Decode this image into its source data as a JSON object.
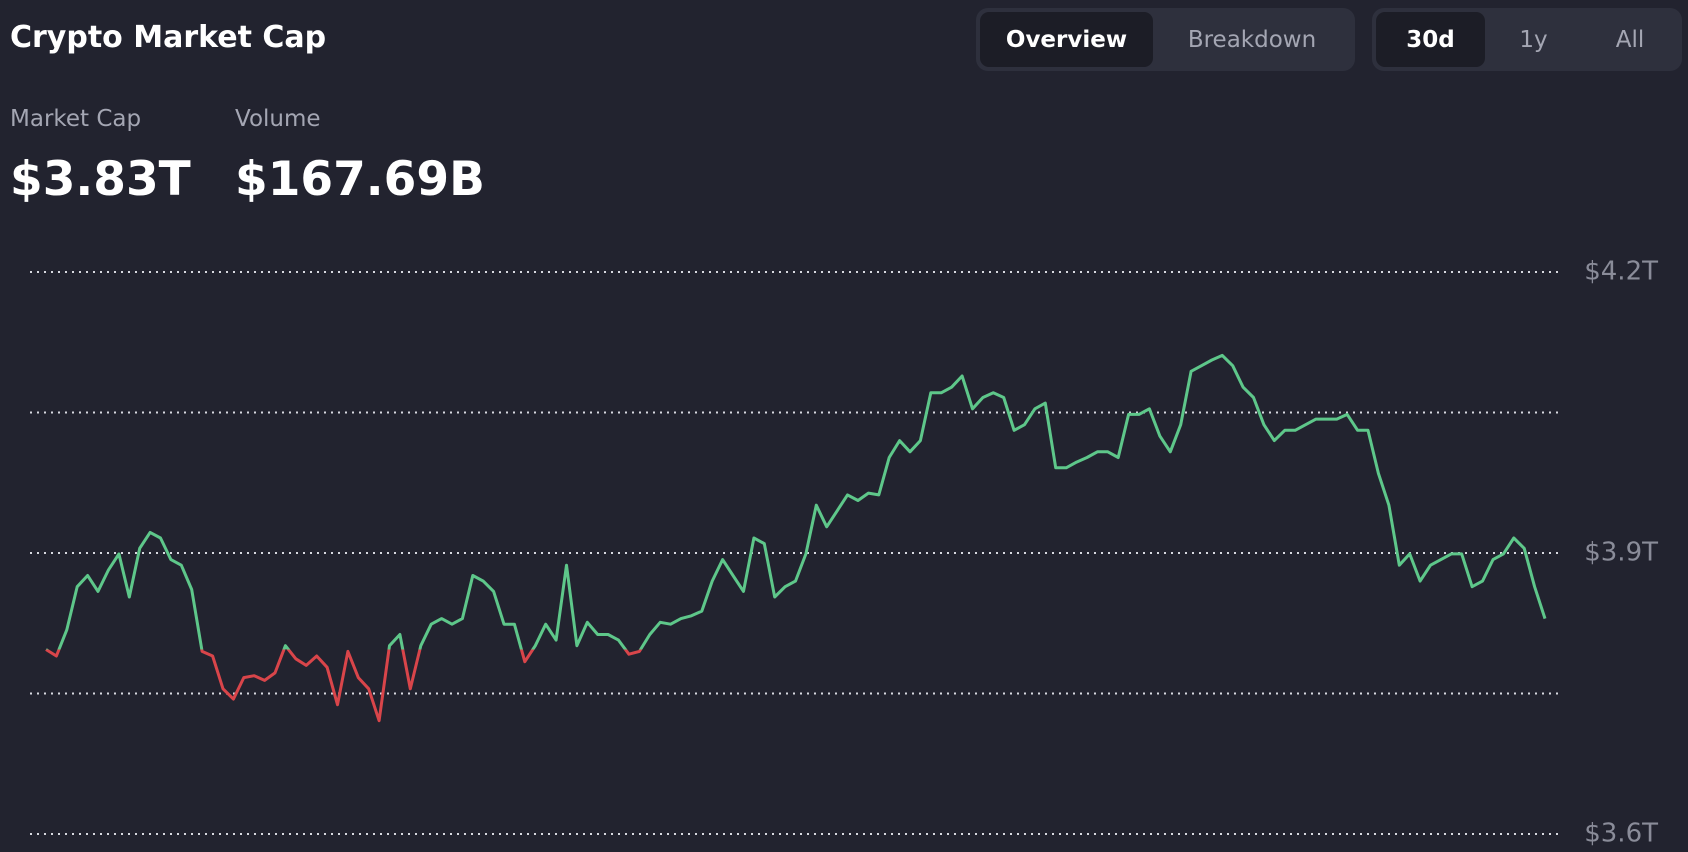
{
  "header": {
    "title": "Crypto Market Cap"
  },
  "view_tabs": {
    "items": [
      "Overview",
      "Breakdown"
    ],
    "active": 0
  },
  "range_tabs": {
    "items": [
      "30d",
      "1y",
      "All"
    ],
    "active": 0
  },
  "stats": [
    {
      "label": "Market Cap",
      "value": "$3.83T"
    },
    {
      "label": "Volume",
      "value": "$167.69B"
    }
  ],
  "chart_data": {
    "type": "line",
    "ylim": [
      3.6,
      4.2
    ],
    "yticks": [
      {
        "value": 3.6,
        "label": "$3.6T"
      },
      {
        "value": 3.9,
        "label": "$3.9T"
      },
      {
        "value": 4.2,
        "label": "$4.2T"
      }
    ],
    "ygrid": [
      3.6,
      3.75,
      3.9,
      4.05,
      4.2
    ],
    "baseline": 3.797,
    "up_color": "#5ec78a",
    "down_color": "#d9454a",
    "values": [
      3.797,
      3.79,
      3.818,
      3.864,
      3.876,
      3.859,
      3.882,
      3.899,
      3.853,
      3.905,
      3.922,
      3.916,
      3.893,
      3.887,
      3.861,
      3.795,
      3.79,
      3.755,
      3.744,
      3.767,
      3.769,
      3.764,
      3.772,
      3.801,
      3.787,
      3.78,
      3.79,
      3.778,
      3.738,
      3.795,
      3.767,
      3.755,
      3.721,
      3.801,
      3.813,
      3.755,
      3.801,
      3.824,
      3.83,
      3.824,
      3.83,
      3.876,
      3.87,
      3.859,
      3.824,
      3.824,
      3.784,
      3.801,
      3.824,
      3.807,
      3.887,
      3.801,
      3.826,
      3.813,
      3.813,
      3.807,
      3.792,
      3.795,
      3.813,
      3.826,
      3.824,
      3.83,
      3.833,
      3.838,
      3.87,
      3.893,
      3.876,
      3.859,
      3.916,
      3.91,
      3.853,
      3.864,
      3.87,
      3.899,
      3.951,
      3.928,
      3.945,
      3.962,
      3.956,
      3.964,
      3.962,
      4.002,
      4.02,
      4.008,
      4.02,
      4.071,
      4.071,
      4.077,
      4.089,
      4.054,
      4.066,
      4.071,
      4.066,
      4.031,
      4.037,
      4.054,
      4.06,
      3.991,
      3.991,
      3.997,
      4.002,
      4.008,
      4.008,
      4.002,
      4.048,
      4.048,
      4.054,
      4.025,
      4.008,
      4.037,
      4.094,
      4.1,
      4.106,
      4.111,
      4.1,
      4.077,
      4.066,
      4.037,
      4.02,
      4.031,
      4.031,
      4.037,
      4.043,
      4.043,
      4.043,
      4.048,
      4.031,
      4.031,
      3.985,
      3.951,
      3.887,
      3.899,
      3.87,
      3.887,
      3.893,
      3.899,
      3.899,
      3.864,
      3.87,
      3.893,
      3.899,
      3.916,
      3.905,
      3.864,
      3.83
    ]
  }
}
